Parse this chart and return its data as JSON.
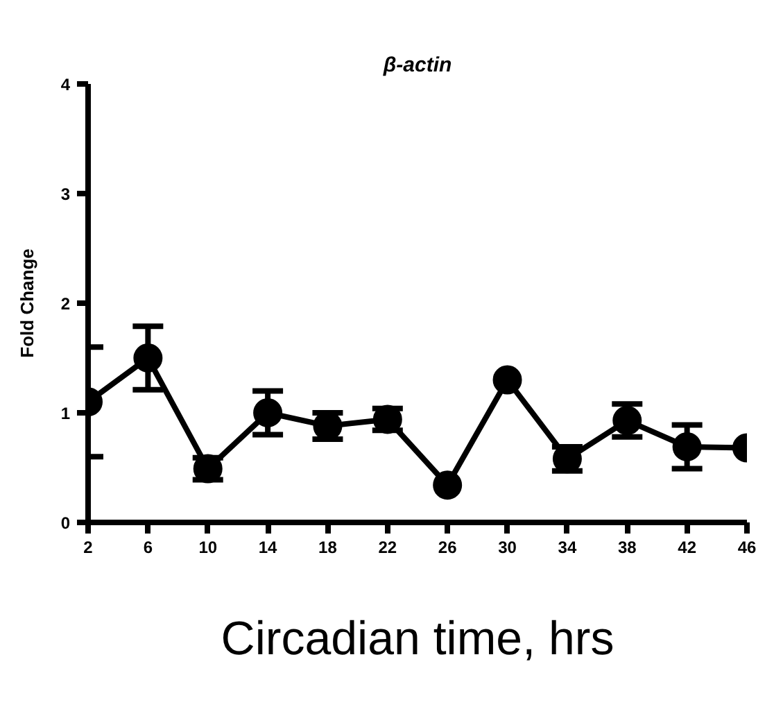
{
  "chart_data": {
    "type": "line",
    "title": "β-actin",
    "xlabel": "Circadian time, hrs",
    "ylabel": "Fold Change",
    "x": [
      2,
      6,
      10,
      14,
      18,
      22,
      26,
      30,
      34,
      38,
      42,
      46
    ],
    "series": [
      {
        "color": "#000000",
        "values": [
          1.1,
          1.5,
          0.49,
          1.0,
          0.88,
          0.94,
          0.34,
          1.3,
          0.58,
          0.93,
          0.69,
          0.68
        ],
        "errors": [
          0.5,
          0.29,
          0.1,
          0.2,
          0.12,
          0.1,
          null,
          null,
          0.11,
          0.15,
          0.2,
          null
        ]
      }
    ],
    "xlim": [
      2,
      46
    ],
    "xticks": [
      2,
      6,
      10,
      14,
      18,
      22,
      26,
      30,
      34,
      38,
      42,
      46
    ],
    "ylim": [
      0,
      4
    ],
    "yticks": [
      0,
      1,
      2,
      3,
      4
    ],
    "grid": false,
    "marker": "circle",
    "line_style": "solid"
  }
}
